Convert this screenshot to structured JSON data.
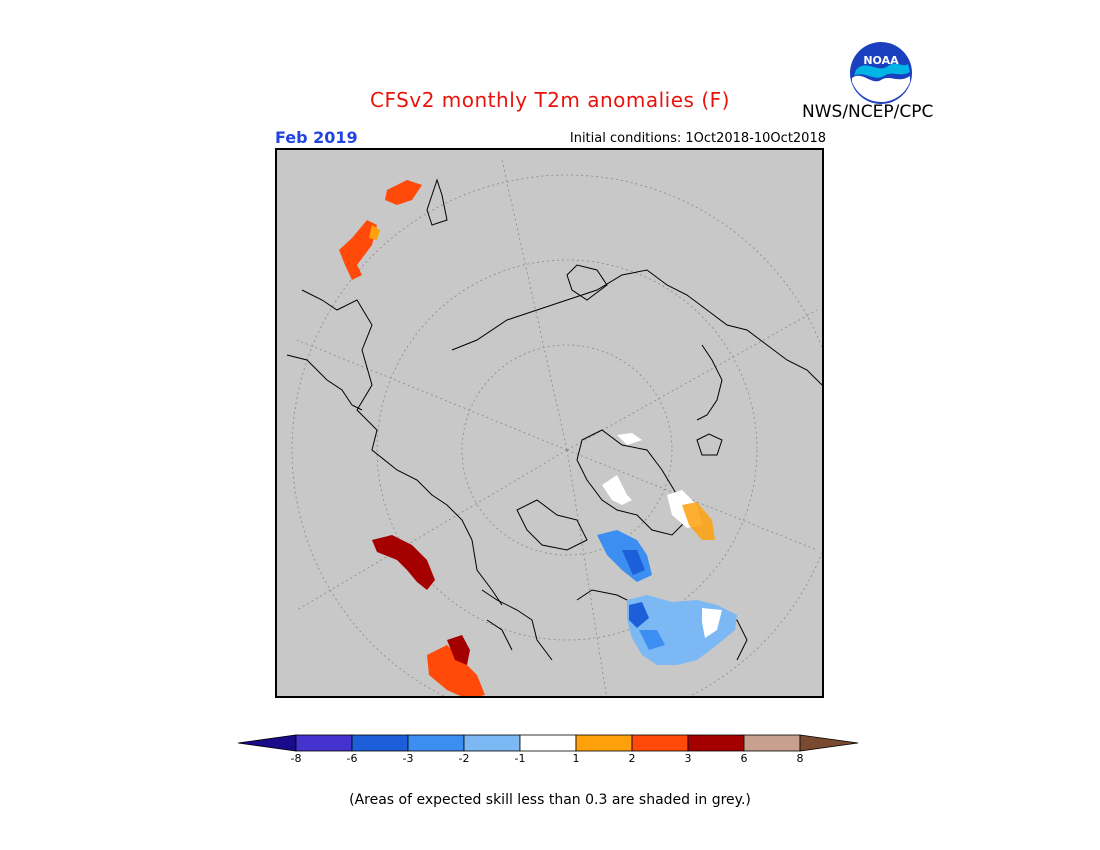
{
  "header": {
    "title": "CFSv2 monthly T2m anomalies (F)",
    "month": "Feb 2019",
    "initial_conditions": "Initial conditions: 1Oct2018-10Oct2018",
    "agency": "NWS/NCEP/CPC",
    "logo_text": "NOAA"
  },
  "colors": {
    "grey_mask": "#c8c8c8",
    "title": "#e8140c",
    "month": "#2244e0"
  },
  "legend": {
    "bins": [
      {
        "color": "#1a0a8c",
        "shape": "arrow-left"
      },
      {
        "color": "#4433cc"
      },
      {
        "color": "#1c5fd8"
      },
      {
        "color": "#3c8ef0"
      },
      {
        "color": "#7bb8f4"
      },
      {
        "color": "#ffffff"
      },
      {
        "color": "#ffa10a"
      },
      {
        "color": "#ff4a0a"
      },
      {
        "color": "#a50000"
      },
      {
        "color": "#c8a090"
      },
      {
        "color": "#7a4a30",
        "shape": "arrow-right"
      }
    ],
    "tick_labels": [
      "-8",
      "-6",
      "-3",
      "-2",
      "-1",
      "1",
      "2",
      "3",
      "6",
      "8"
    ]
  },
  "footnote": "(Areas of expected skill less than 0.3 are shaded in grey.)"
}
